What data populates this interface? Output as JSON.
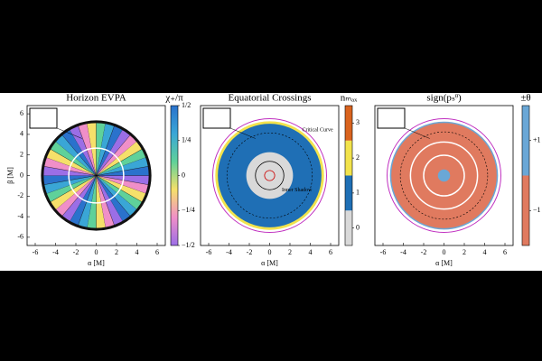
{
  "chart_data": [
    {
      "type": "image",
      "title": "Horizon EVPA",
      "xlabel": "α [M]",
      "ylabel": "β [M]",
      "xlim": [
        -6.8,
        6.8
      ],
      "ylim": [
        -6.8,
        6.8
      ],
      "xticks": [
        -6,
        -4,
        -2,
        0,
        2,
        4,
        6
      ],
      "yticks": [
        -6,
        -4,
        -2,
        0,
        2,
        4,
        6
      ],
      "colorbar": {
        "label": "χ₊/π",
        "ylim": [
          -0.5,
          0.5
        ],
        "colors": [
          "#9b6ee6",
          "#f08fc8",
          "#f5e06a",
          "#5fd19a",
          "#3aa6d6",
          "#2a72cc"
        ],
        "ticks": [
          {
            "value": -0.5,
            "label": "−1/2"
          },
          {
            "value": -0.25,
            "label": "−1/4"
          },
          0,
          {
            "value": 0.25,
            "label": "1/4"
          },
          {
            "value": 0.5,
            "label": "1/2"
          }
        ]
      }
    },
    {
      "type": "image",
      "title": "Equatorial Crossings",
      "xlabel": "α [M]",
      "xlim": [
        -6.8,
        6.8
      ],
      "ylim": [
        -6.8,
        6.8
      ],
      "xticks": [
        -6,
        -4,
        -2,
        0,
        2,
        4,
        6
      ],
      "annotations": [
        "Critical Curve",
        "Inner Shadow"
      ],
      "colorbar": {
        "label": "nₘₐₓ",
        "ylim": [
          -0.5,
          3.5
        ],
        "bands": [
          -0.5,
          0.5,
          1.5,
          2.5,
          3.5
        ],
        "colors": [
          "#d9d9d9",
          "#1f6fb5",
          "#f2e34c",
          "#d9631e"
        ],
        "ticks": [
          0,
          1,
          2,
          3
        ]
      }
    },
    {
      "type": "image",
      "title": "sign(pₛᶿ)",
      "xlabel": "α [M]",
      "xlim": [
        -6.8,
        6.8
      ],
      "ylim": [
        -6.8,
        6.8
      ],
      "xticks": [
        -6,
        -4,
        -2,
        0,
        2,
        4,
        6
      ],
      "colorbar": {
        "label": "±θ",
        "ylim": [
          -2,
          2
        ],
        "bands": [
          -2,
          0,
          2
        ],
        "colors": [
          "#e07a5f",
          "#6aa7d6"
        ],
        "ticks": [
          {
            "value": -1,
            "label": "−1"
          },
          {
            "value": 1,
            "label": "+1"
          }
        ]
      }
    }
  ]
}
